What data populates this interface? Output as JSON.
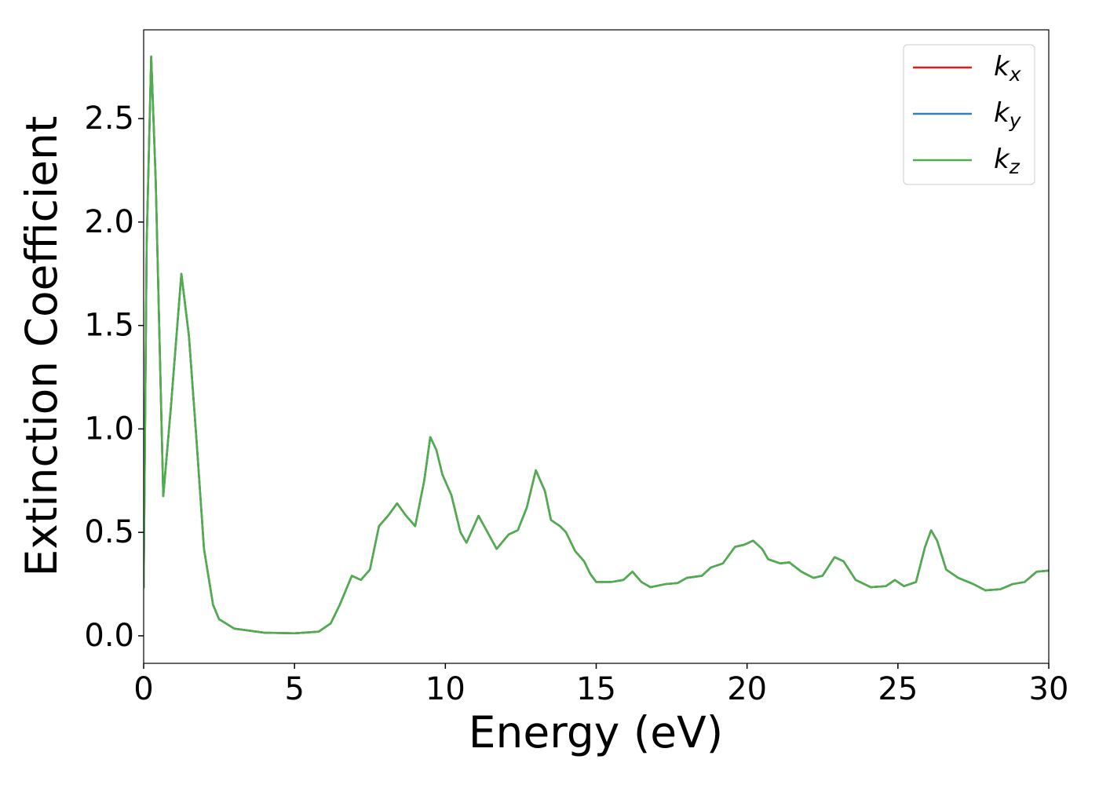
{
  "chart_data": {
    "type": "line",
    "xlabel": "Energy (eV)",
    "ylabel": "Extinction Coefficient",
    "x": [
      0,
      0.1,
      0.25,
      0.4,
      0.65,
      0.9,
      1.25,
      1.5,
      1.75,
      2.0,
      2.3,
      2.5,
      3.0,
      4.0,
      5.0,
      5.8,
      6.2,
      6.5,
      6.9,
      7.2,
      7.5,
      7.8,
      8.1,
      8.4,
      8.7,
      9.0,
      9.3,
      9.5,
      9.7,
      9.9,
      10.2,
      10.5,
      10.7,
      11.1,
      11.4,
      11.7,
      12.1,
      12.4,
      12.7,
      13.0,
      13.3,
      13.5,
      13.8,
      14.0,
      14.3,
      14.6,
      14.8,
      15.0,
      15.5,
      15.9,
      16.2,
      16.5,
      16.8,
      17.3,
      17.7,
      18.0,
      18.5,
      18.8,
      19.2,
      19.6,
      19.9,
      20.2,
      20.5,
      20.7,
      21.1,
      21.4,
      21.8,
      22.2,
      22.5,
      22.9,
      23.2,
      23.6,
      24.1,
      24.6,
      24.9,
      25.2,
      25.6,
      25.9,
      26.1,
      26.3,
      26.6,
      27.0,
      27.5,
      27.9,
      28.4,
      28.8,
      29.2,
      29.6,
      30.0
    ],
    "series": [
      {
        "name": "kx",
        "color": "#e41a1c",
        "values": [
          0.23,
          1.9,
          2.8,
          2.2,
          0.675,
          1.1,
          1.75,
          1.45,
          0.95,
          0.42,
          0.15,
          0.08,
          0.035,
          0.015,
          0.012,
          0.02,
          0.06,
          0.15,
          0.29,
          0.27,
          0.32,
          0.53,
          0.58,
          0.64,
          0.58,
          0.53,
          0.75,
          0.96,
          0.9,
          0.78,
          0.68,
          0.5,
          0.45,
          0.58,
          0.5,
          0.42,
          0.49,
          0.51,
          0.62,
          0.8,
          0.7,
          0.56,
          0.53,
          0.5,
          0.41,
          0.36,
          0.3,
          0.26,
          0.26,
          0.27,
          0.31,
          0.26,
          0.235,
          0.25,
          0.255,
          0.28,
          0.29,
          0.33,
          0.35,
          0.43,
          0.44,
          0.46,
          0.42,
          0.37,
          0.35,
          0.355,
          0.31,
          0.28,
          0.29,
          0.38,
          0.36,
          0.27,
          0.235,
          0.24,
          0.27,
          0.24,
          0.26,
          0.43,
          0.51,
          0.46,
          0.32,
          0.28,
          0.25,
          0.22,
          0.225,
          0.25,
          0.26,
          0.31,
          0.315
        ]
      },
      {
        "name": "ky",
        "color": "#377eb8",
        "values": [
          0.23,
          1.9,
          2.8,
          2.2,
          0.675,
          1.1,
          1.75,
          1.45,
          0.95,
          0.42,
          0.15,
          0.08,
          0.035,
          0.015,
          0.012,
          0.02,
          0.06,
          0.15,
          0.29,
          0.27,
          0.32,
          0.53,
          0.58,
          0.64,
          0.58,
          0.53,
          0.75,
          0.96,
          0.9,
          0.78,
          0.68,
          0.5,
          0.45,
          0.58,
          0.5,
          0.42,
          0.49,
          0.51,
          0.62,
          0.8,
          0.7,
          0.56,
          0.53,
          0.5,
          0.41,
          0.36,
          0.3,
          0.26,
          0.26,
          0.27,
          0.31,
          0.26,
          0.235,
          0.25,
          0.255,
          0.28,
          0.29,
          0.33,
          0.35,
          0.43,
          0.44,
          0.46,
          0.42,
          0.37,
          0.35,
          0.355,
          0.31,
          0.28,
          0.29,
          0.38,
          0.36,
          0.27,
          0.235,
          0.24,
          0.27,
          0.24,
          0.26,
          0.43,
          0.51,
          0.46,
          0.32,
          0.28,
          0.25,
          0.22,
          0.225,
          0.25,
          0.26,
          0.31,
          0.315
        ]
      },
      {
        "name": "kz",
        "color": "#4daf4a",
        "values": [
          0.23,
          1.9,
          2.8,
          2.2,
          0.675,
          1.1,
          1.75,
          1.45,
          0.95,
          0.42,
          0.15,
          0.08,
          0.035,
          0.015,
          0.012,
          0.02,
          0.06,
          0.15,
          0.29,
          0.27,
          0.32,
          0.53,
          0.58,
          0.64,
          0.58,
          0.53,
          0.75,
          0.96,
          0.9,
          0.78,
          0.68,
          0.5,
          0.45,
          0.58,
          0.5,
          0.42,
          0.49,
          0.51,
          0.62,
          0.8,
          0.7,
          0.56,
          0.53,
          0.5,
          0.41,
          0.36,
          0.3,
          0.26,
          0.26,
          0.27,
          0.31,
          0.26,
          0.235,
          0.25,
          0.255,
          0.28,
          0.29,
          0.33,
          0.35,
          0.43,
          0.44,
          0.46,
          0.42,
          0.37,
          0.35,
          0.355,
          0.31,
          0.28,
          0.29,
          0.38,
          0.36,
          0.27,
          0.235,
          0.24,
          0.27,
          0.24,
          0.26,
          0.43,
          0.51,
          0.46,
          0.32,
          0.28,
          0.25,
          0.22,
          0.225,
          0.25,
          0.26,
          0.31,
          0.315
        ]
      }
    ],
    "xlim": [
      0,
      30
    ],
    "xticks": [
      0,
      5,
      10,
      15,
      20,
      25,
      30
    ],
    "ylim": [
      -0.133,
      2.929
    ],
    "yticks": [
      {
        "value": 0,
        "label": "0.0"
      },
      0.5,
      {
        "value": 1,
        "label": "1.0"
      },
      1.5,
      {
        "value": 2,
        "label": "2.0"
      },
      2.5
    ],
    "grid": false,
    "legend": "upper right"
  }
}
